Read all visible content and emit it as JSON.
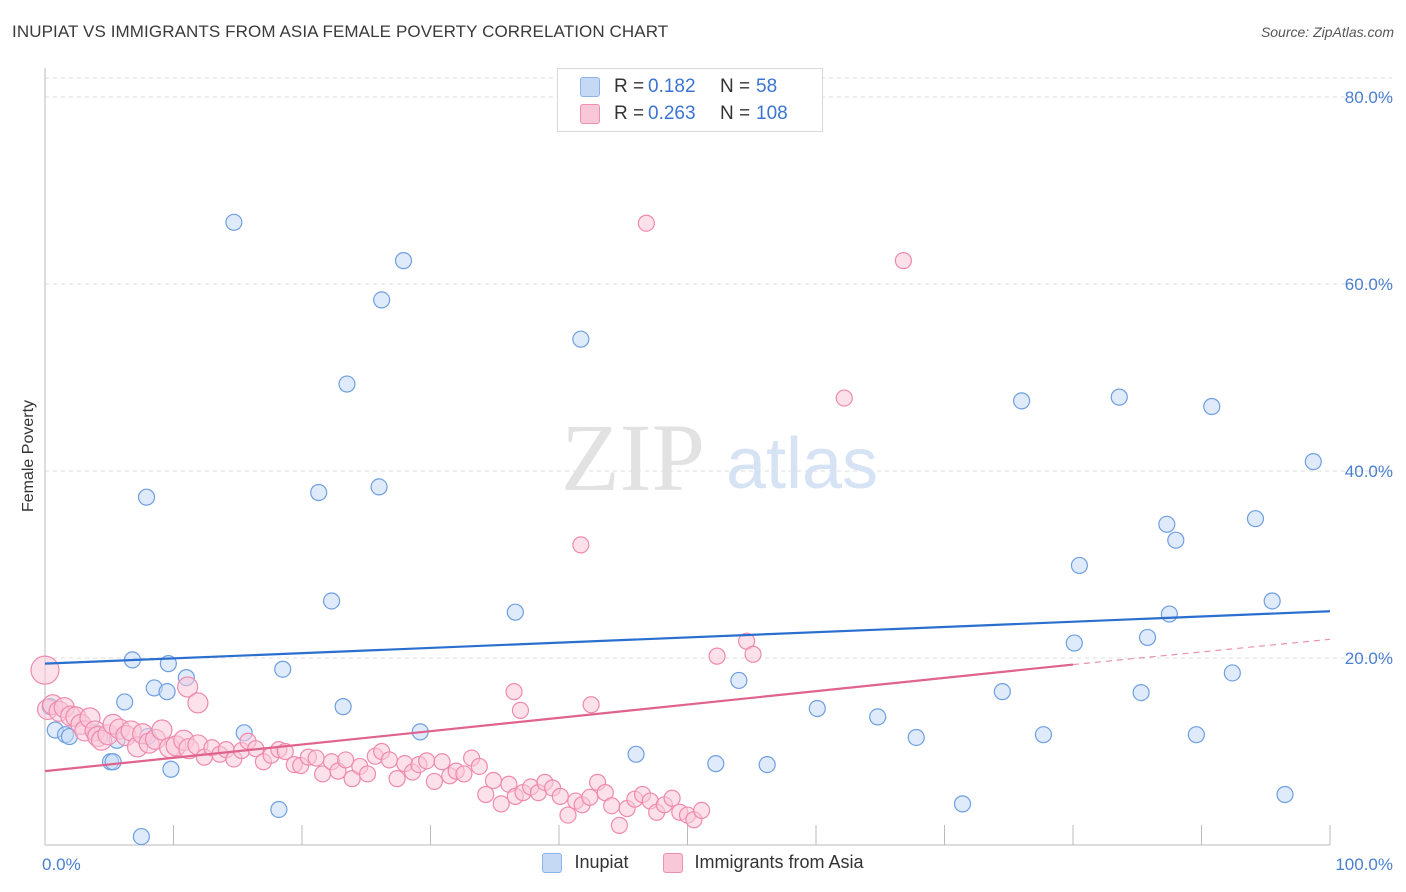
{
  "header": {
    "title": "INUPIAT VS IMMIGRANTS FROM ASIA FEMALE POVERTY CORRELATION CHART",
    "source": "Source: ZipAtlas.com"
  },
  "watermark": {
    "zip": "ZIP",
    "atlas": "atlas"
  },
  "legend": {
    "rows": [
      {
        "r_label": "R =",
        "r_value": "0.182",
        "n_label": "N =",
        "n_value": "58",
        "color": "#8db3e8",
        "fill": "#c5d9f5"
      },
      {
        "r_label": "R =",
        "r_value": "0.263",
        "n_label": "N =",
        "n_value": "108",
        "color": "#f08fb0",
        "fill": "#f9c8d8"
      }
    ]
  },
  "bottom_legend": [
    {
      "label": "Inupiat",
      "color": "#8db3e8",
      "fill": "#c5d9f5"
    },
    {
      "label": "Immigrants from Asia",
      "color": "#f08fb0",
      "fill": "#f9c8d8"
    }
  ],
  "chart_data": {
    "type": "scatter",
    "ylabel": "Female Poverty",
    "xlim": [
      0,
      100
    ],
    "ylim": [
      0,
      80
    ],
    "x_tick_labels": [
      "0.0%",
      "100.0%"
    ],
    "y_ticks": [
      20,
      40,
      60,
      80
    ],
    "y_tick_labels": [
      "20.0%",
      "40.0%",
      "60.0%",
      "80.0%"
    ],
    "grid": true,
    "series": [
      {
        "name": "Inupiat",
        "color": "#6e9fe0",
        "fill": "#c5d9f5",
        "trend": {
          "x": [
            0,
            100
          ],
          "y": [
            19.4,
            25.0
          ],
          "color": "#2a6fcf"
        },
        "points": [
          [
            0.4,
            14.8
          ],
          [
            0.8,
            12.3
          ],
          [
            1.6,
            11.8
          ],
          [
            1.9,
            11.6
          ],
          [
            3.9,
            12.0
          ],
          [
            5.1,
            8.9
          ],
          [
            5.3,
            8.9
          ],
          [
            5.6,
            11.2
          ],
          [
            6.2,
            15.3
          ],
          [
            6.8,
            19.8
          ],
          [
            7.5,
            0.9
          ],
          [
            7.9,
            37.2
          ],
          [
            8.0,
            11.6
          ],
          [
            8.5,
            16.8
          ],
          [
            9.5,
            16.4
          ],
          [
            9.6,
            19.4
          ],
          [
            9.8,
            8.1
          ],
          [
            11.0,
            17.9
          ],
          [
            14.7,
            66.6
          ],
          [
            15.5,
            12.0
          ],
          [
            18.2,
            3.8
          ],
          [
            18.5,
            18.8
          ],
          [
            21.3,
            37.7
          ],
          [
            22.3,
            26.1
          ],
          [
            23.2,
            14.8
          ],
          [
            23.5,
            49.3
          ],
          [
            26.0,
            38.3
          ],
          [
            26.2,
            58.3
          ],
          [
            27.9,
            62.5
          ],
          [
            29.2,
            12.1
          ],
          [
            36.6,
            24.9
          ],
          [
            41.7,
            54.1
          ],
          [
            46.0,
            9.7
          ],
          [
            52.2,
            8.7
          ],
          [
            54.0,
            17.6
          ],
          [
            56.2,
            8.6
          ],
          [
            60.1,
            14.6
          ],
          [
            64.8,
            13.7
          ],
          [
            67.8,
            11.5
          ],
          [
            71.4,
            4.4
          ],
          [
            74.5,
            16.4
          ],
          [
            76.0,
            47.5
          ],
          [
            77.7,
            11.8
          ],
          [
            80.1,
            21.6
          ],
          [
            80.5,
            29.9
          ],
          [
            83.6,
            47.9
          ],
          [
            85.3,
            16.3
          ],
          [
            85.8,
            22.2
          ],
          [
            87.3,
            34.3
          ],
          [
            87.5,
            24.7
          ],
          [
            88.0,
            32.6
          ],
          [
            89.6,
            11.8
          ],
          [
            90.8,
            46.9
          ],
          [
            92.4,
            18.4
          ],
          [
            94.2,
            34.9
          ],
          [
            95.5,
            26.1
          ],
          [
            96.5,
            5.4
          ],
          [
            98.7,
            41.0
          ]
        ]
      },
      {
        "name": "Immigrants from Asia",
        "color": "#ef8aac",
        "fill": "#f9c8d8",
        "trend": {
          "x": [
            0,
            80
          ],
          "y": [
            7.9,
            19.3
          ],
          "color": "#e0628f",
          "dashed_to": [
            100,
            22.0
          ]
        },
        "points": [
          [
            0.0,
            18.7
          ],
          [
            0.2,
            14.5
          ],
          [
            0.6,
            15.0
          ],
          [
            1.1,
            14.3
          ],
          [
            1.5,
            14.7
          ],
          [
            2.0,
            13.8
          ],
          [
            2.4,
            13.7
          ],
          [
            2.8,
            12.9
          ],
          [
            3.1,
            12.2
          ],
          [
            3.5,
            13.6
          ],
          [
            3.9,
            12.2
          ],
          [
            4.1,
            11.6
          ],
          [
            4.4,
            11.2
          ],
          [
            4.9,
            11.8
          ],
          [
            5.3,
            12.9
          ],
          [
            5.8,
            12.4
          ],
          [
            6.3,
            11.7
          ],
          [
            6.7,
            12.2
          ],
          [
            7.2,
            10.5
          ],
          [
            7.6,
            11.9
          ],
          [
            8.1,
            10.9
          ],
          [
            8.6,
            11.3
          ],
          [
            9.1,
            12.3
          ],
          [
            9.7,
            10.4
          ],
          [
            10.2,
            10.6
          ],
          [
            10.8,
            11.2
          ],
          [
            11.2,
            10.3
          ],
          [
            11.9,
            10.7
          ],
          [
            12.4,
            9.4
          ],
          [
            13.0,
            10.4
          ],
          [
            13.6,
            9.7
          ],
          [
            14.1,
            10.2
          ],
          [
            14.7,
            9.2
          ],
          [
            15.3,
            10.1
          ],
          [
            15.8,
            11.1
          ],
          [
            16.4,
            10.3
          ],
          [
            17.0,
            8.9
          ],
          [
            17.6,
            9.6
          ],
          [
            18.2,
            10.2
          ],
          [
            18.7,
            10.0
          ],
          [
            19.4,
            8.6
          ],
          [
            19.9,
            8.5
          ],
          [
            20.5,
            9.4
          ],
          [
            21.1,
            9.3
          ],
          [
            21.6,
            7.6
          ],
          [
            22.3,
            8.9
          ],
          [
            22.8,
            7.9
          ],
          [
            23.4,
            9.1
          ],
          [
            23.9,
            7.1
          ],
          [
            24.5,
            8.4
          ],
          [
            25.1,
            7.6
          ],
          [
            25.7,
            9.5
          ],
          [
            26.2,
            10.0
          ],
          [
            26.8,
            9.1
          ],
          [
            27.4,
            7.1
          ],
          [
            28.0,
            8.7
          ],
          [
            28.6,
            7.8
          ],
          [
            29.1,
            8.6
          ],
          [
            29.7,
            9.0
          ],
          [
            30.3,
            6.8
          ],
          [
            30.9,
            8.9
          ],
          [
            31.5,
            7.4
          ],
          [
            32.0,
            7.9
          ],
          [
            32.6,
            7.6
          ],
          [
            33.2,
            9.3
          ],
          [
            33.8,
            8.4
          ],
          [
            34.3,
            5.4
          ],
          [
            34.9,
            6.9
          ],
          [
            35.5,
            4.4
          ],
          [
            36.1,
            6.5
          ],
          [
            36.6,
            5.2
          ],
          [
            37.2,
            5.6
          ],
          [
            37.8,
            6.2
          ],
          [
            38.4,
            5.6
          ],
          [
            38.9,
            6.7
          ],
          [
            39.5,
            6.1
          ],
          [
            40.1,
            5.2
          ],
          [
            40.7,
            3.2
          ],
          [
            41.3,
            4.7
          ],
          [
            41.8,
            4.3
          ],
          [
            42.4,
            5.1
          ],
          [
            43.0,
            6.7
          ],
          [
            43.6,
            5.6
          ],
          [
            44.1,
            4.2
          ],
          [
            44.7,
            2.1
          ],
          [
            45.3,
            3.9
          ],
          [
            45.9,
            4.9
          ],
          [
            46.5,
            5.4
          ],
          [
            47.1,
            4.7
          ],
          [
            47.6,
            3.5
          ],
          [
            48.2,
            4.3
          ],
          [
            48.8,
            5.0
          ],
          [
            49.4,
            3.5
          ],
          [
            50.0,
            3.2
          ],
          [
            50.5,
            2.7
          ],
          [
            51.1,
            3.7
          ],
          [
            11.1,
            16.9
          ],
          [
            11.9,
            15.2
          ],
          [
            36.5,
            16.4
          ],
          [
            37.0,
            14.4
          ],
          [
            41.7,
            32.1
          ],
          [
            42.5,
            15.0
          ],
          [
            46.8,
            66.5
          ],
          [
            52.3,
            20.2
          ],
          [
            54.6,
            21.8
          ],
          [
            55.1,
            20.4
          ],
          [
            62.2,
            47.8
          ],
          [
            66.8,
            62.5
          ]
        ]
      }
    ]
  }
}
